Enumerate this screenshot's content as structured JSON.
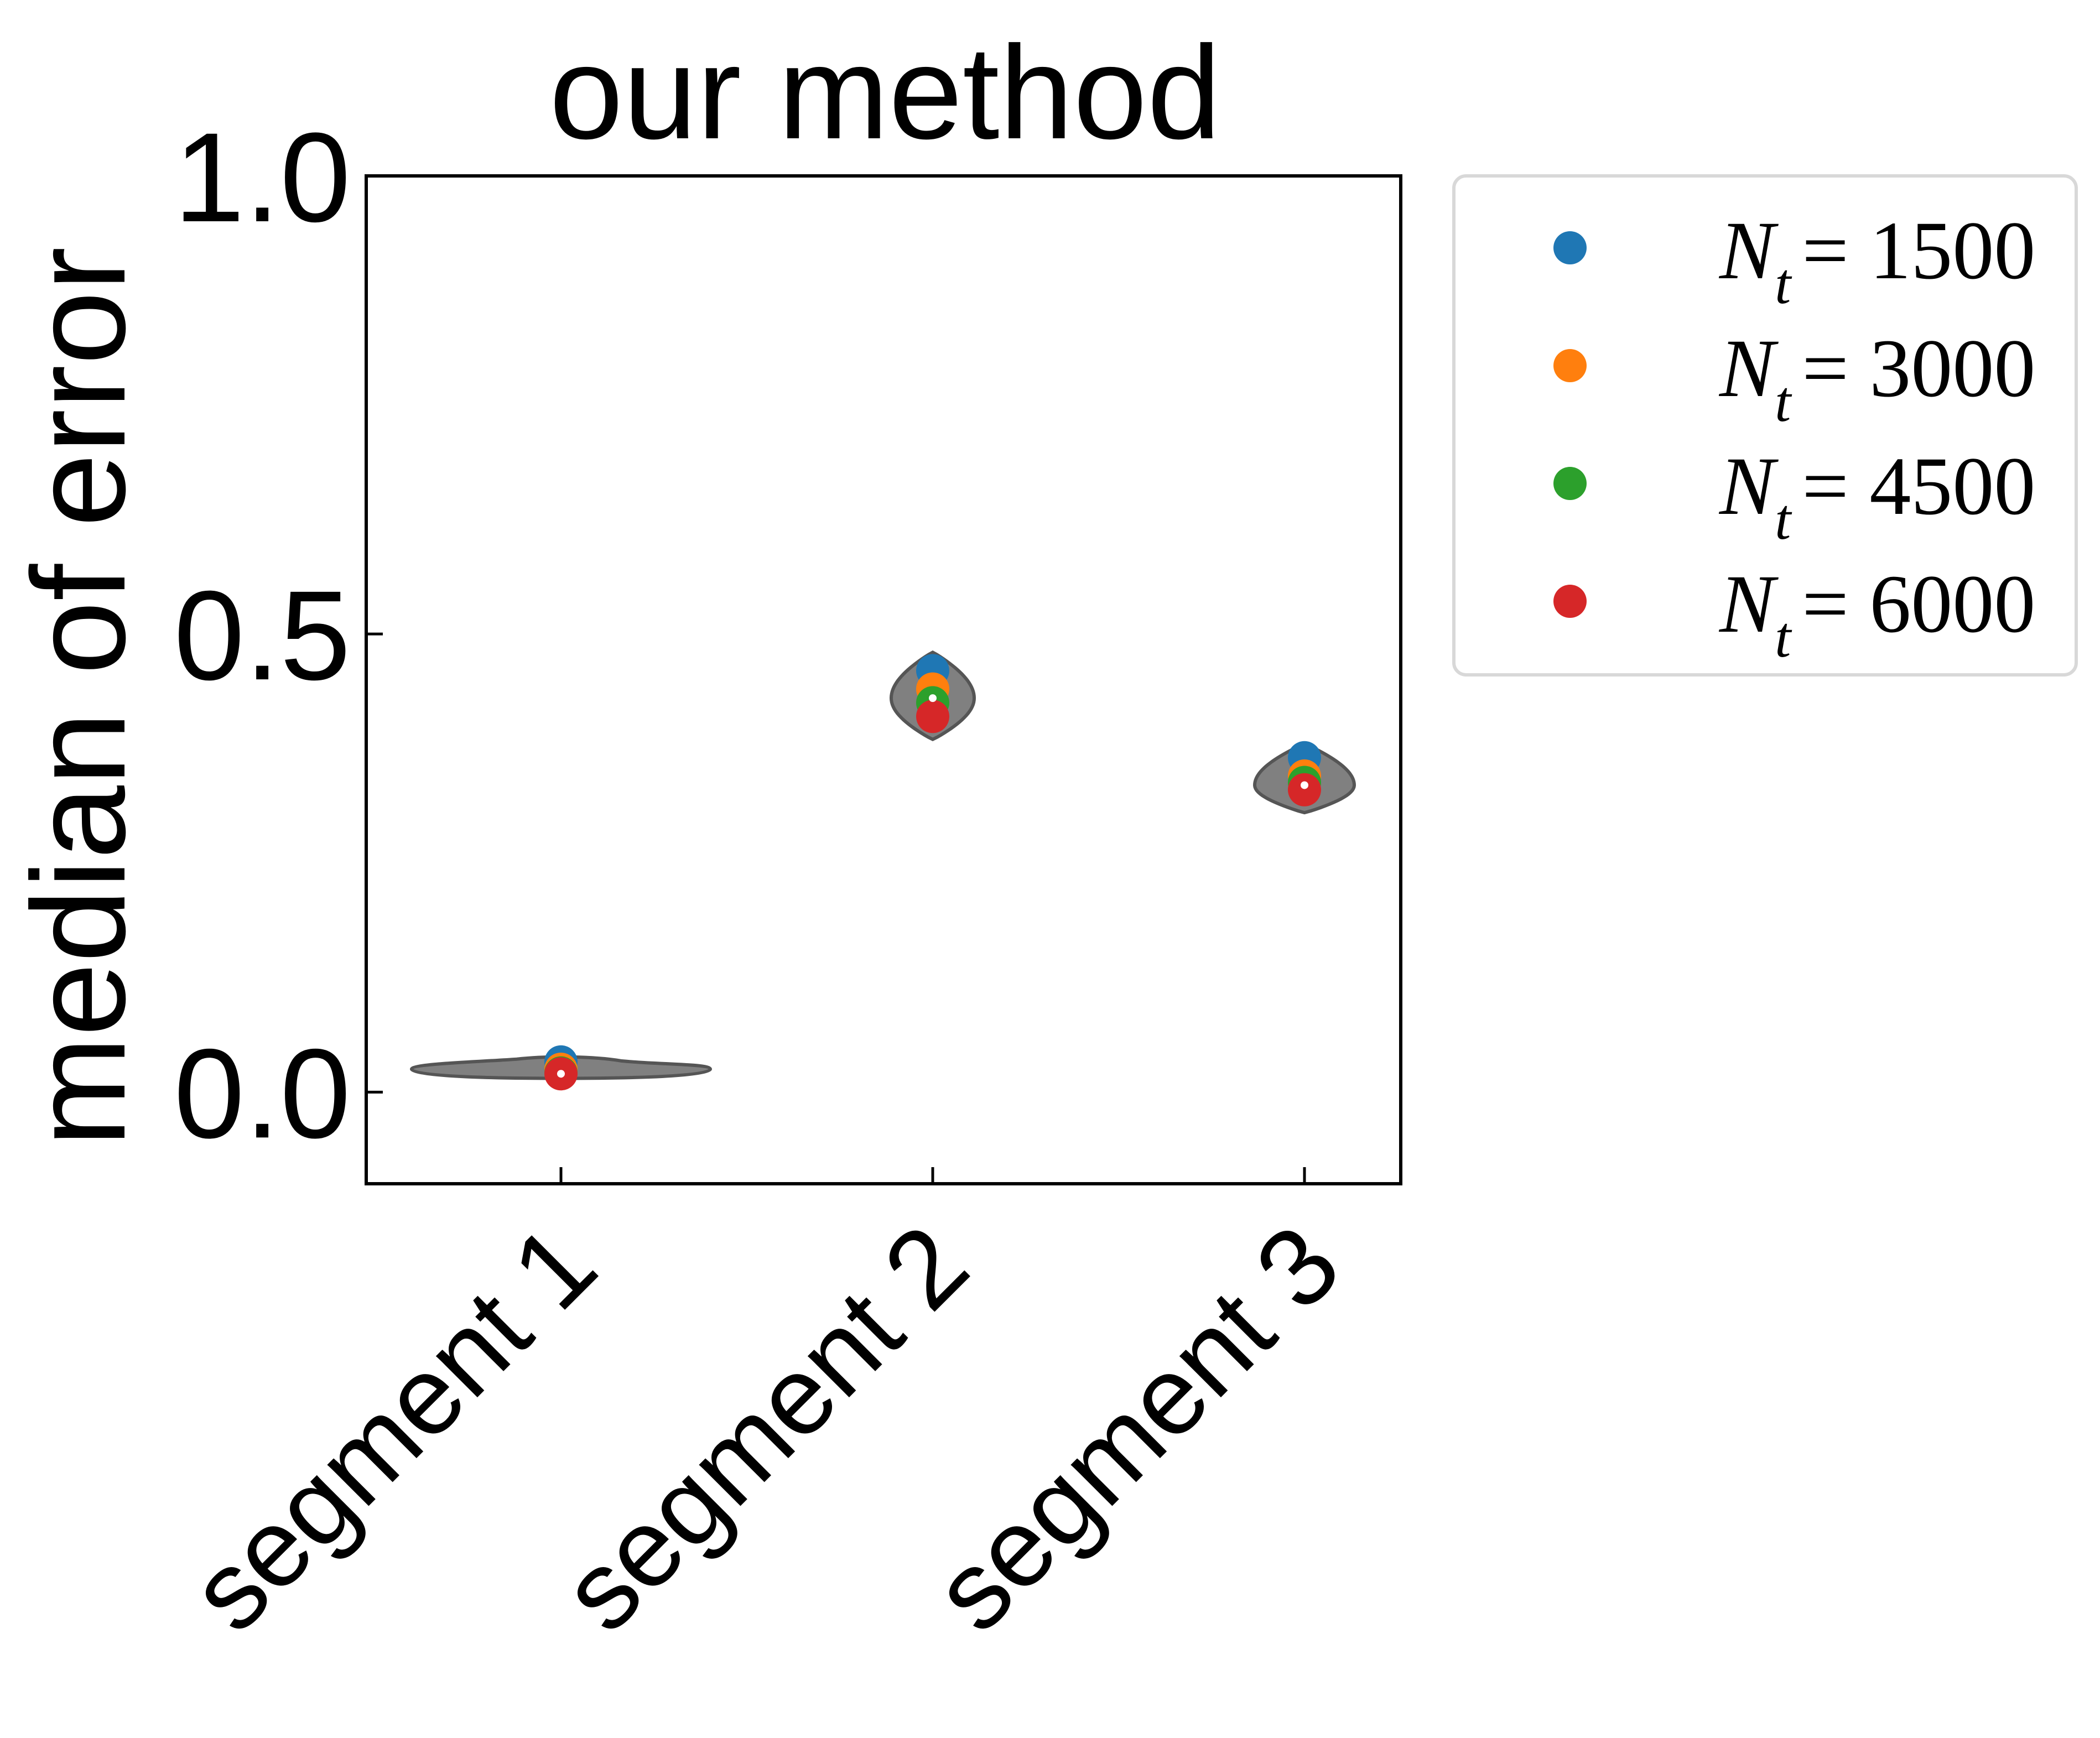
{
  "chart_data": {
    "type": "violin",
    "title": "our method",
    "xlabel": "",
    "ylabel": "median of error",
    "categories": [
      "segment 1",
      "segment 2",
      "segment 3"
    ],
    "ylim": [
      -0.1,
      1.0
    ],
    "yticks": [
      "0.0",
      "0.5",
      "1.0"
    ],
    "ytick_values": [
      0.0,
      0.5,
      1.0
    ],
    "grid": false,
    "legend_position": "outside-upper-right",
    "violin_color": "#808080",
    "violins": [
      {
        "category": "segment 1",
        "median": 0.02,
        "q1": 0.018,
        "q3": 0.025,
        "min": 0.015,
        "max": 0.035
      },
      {
        "category": "segment 2",
        "median": 0.43,
        "q1": 0.41,
        "q3": 0.45,
        "min": 0.385,
        "max": 0.48
      },
      {
        "category": "segment 3",
        "median": 0.335,
        "q1": 0.325,
        "q3": 0.35,
        "min": 0.305,
        "max": 0.38
      }
    ],
    "series": [
      {
        "name": "N_t = 1500",
        "label_var": "N",
        "label_sub": "t",
        "label_value": "= 1500",
        "color": "#1f77b4",
        "values": [
          0.033,
          0.46,
          0.365
        ]
      },
      {
        "name": "N_t = 3000",
        "label_var": "N",
        "label_sub": "t",
        "label_value": "= 3000",
        "color": "#ff7f0e",
        "values": [
          0.025,
          0.44,
          0.345
        ]
      },
      {
        "name": "N_t = 4500",
        "label_var": "N",
        "label_sub": "t",
        "label_value": "= 4500",
        "color": "#2ca02c",
        "values": [
          0.021,
          0.425,
          0.338
        ]
      },
      {
        "name": "N_t = 6000",
        "label_var": "N",
        "label_sub": "t",
        "label_value": "= 6000",
        "color": "#d62728",
        "values": [
          0.02,
          0.41,
          0.33
        ]
      }
    ]
  }
}
